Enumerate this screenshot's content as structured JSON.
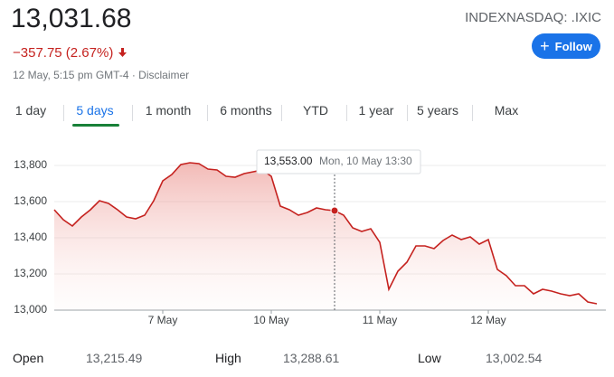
{
  "header": {
    "price": "13,031.68",
    "change": "−357.75 (2.67%)",
    "time": "12 May, 5:15 pm GMT-4 · Disclaimer",
    "ticker": "INDEXNASDAQ: .IXIC",
    "follow": "Follow"
  },
  "tabs": [
    "1 day",
    "5 days",
    "1 month",
    "6 months",
    "YTD",
    "1 year",
    "5 years",
    "Max"
  ],
  "chart_data": {
    "type": "line",
    "categories": [
      null,
      null,
      null,
      null,
      null,
      null,
      null,
      null,
      null,
      null,
      null,
      null,
      "7 May",
      null,
      null,
      null,
      null,
      null,
      null,
      null,
      null,
      null,
      null,
      null,
      "10 May",
      null,
      null,
      null,
      null,
      null,
      null,
      null,
      null,
      null,
      null,
      null,
      "11 May",
      null,
      null,
      null,
      null,
      null,
      null,
      null,
      null,
      null,
      null,
      null,
      "12 May",
      null,
      null,
      null,
      null,
      null,
      null,
      null,
      null,
      null,
      null,
      null,
      null
    ],
    "series": [
      {
        "color": "#c5221f",
        "values": [
          13555,
          13500,
          13465,
          13515,
          13555,
          13605,
          13590,
          13555,
          13515,
          13505,
          13525,
          13605,
          13715,
          13750,
          13805,
          13815,
          13810,
          13780,
          13775,
          13740,
          13735,
          13755,
          13765,
          13775,
          13740,
          13575,
          13555,
          13525,
          13540,
          13565,
          13555,
          13550,
          13525,
          13455,
          13435,
          13450,
          13375,
          13115,
          13215,
          13265,
          13355,
          13355,
          13340,
          13385,
          13415,
          13390,
          13405,
          13365,
          13390,
          13225,
          13190,
          13135,
          13135,
          13090,
          13115,
          13105,
          13090,
          13080,
          13090,
          13045,
          13035
        ]
      }
    ],
    "ylim": [
      13000,
      13900
    ],
    "yticks": [
      {
        "value": 13000,
        "label": "13,000"
      },
      {
        "value": 13200,
        "label": "13,200"
      },
      {
        "value": 13400,
        "label": "13,400"
      },
      {
        "value": 13600,
        "label": "13,600"
      },
      {
        "value": 13800,
        "label": "13,800"
      }
    ],
    "grid": true,
    "tooltip": {
      "price": "13,553.00",
      "time": "Mon, 10 May 13:30"
    }
  },
  "stats": [
    {
      "label": "Open",
      "value": "13,215.49"
    },
    {
      "label": "High",
      "value": "13,288.61"
    },
    {
      "label": "Low",
      "value": "13,002.54"
    }
  ]
}
